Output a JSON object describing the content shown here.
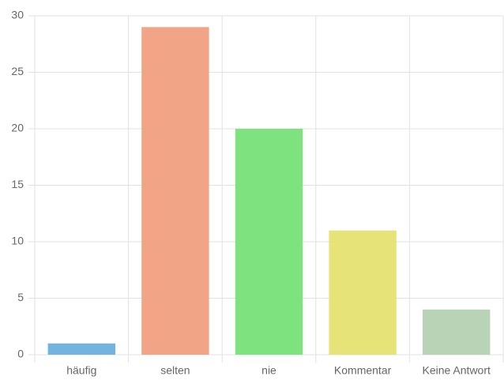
{
  "chart_data": {
    "type": "bar",
    "categories": [
      "häufig",
      "selten",
      "nie",
      "Kommentar",
      "Keine Antwort"
    ],
    "values": [
      1,
      29,
      20,
      11,
      4
    ],
    "colors": [
      "#6aafdd",
      "#f0a080",
      "#77e077",
      "#e5e272",
      "#b5d1b3"
    ],
    "ylim": [
      0,
      30
    ],
    "yticks": [
      0,
      5,
      10,
      15,
      20,
      25,
      30
    ],
    "grid": true
  }
}
